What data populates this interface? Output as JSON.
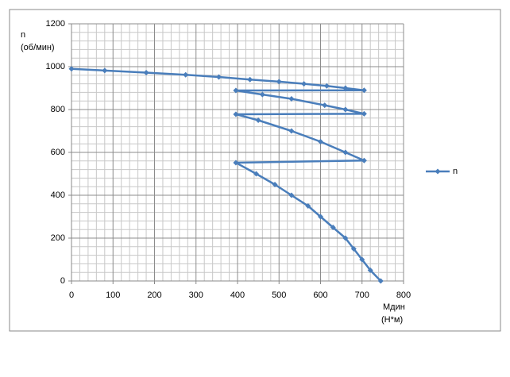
{
  "chart_data": {
    "type": "line",
    "y_label": [
      "n",
      "(об/мин)"
    ],
    "x_label": [
      "Мдин",
      "(Н*м)"
    ],
    "x": [
      0,
      80,
      180,
      275,
      355,
      430,
      500,
      560,
      615,
      660,
      705,
      396,
      460,
      530,
      610,
      660,
      705,
      396,
      450,
      530,
      600,
      660,
      705,
      396,
      445,
      490,
      530,
      570,
      600,
      630,
      660,
      680,
      700,
      720,
      745
    ],
    "series": [
      {
        "name": "n",
        "color": "#4a7ebb",
        "values": [
          990,
          982,
          972,
          962,
          952,
          940,
          930,
          920,
          910,
          900,
          890,
          889,
          870,
          850,
          820,
          800,
          780,
          778,
          750,
          700,
          650,
          600,
          562,
          552,
          500,
          450,
          400,
          350,
          300,
          250,
          200,
          150,
          100,
          50,
          0
        ]
      }
    ],
    "xlim": [
      0,
      800
    ],
    "xticks": [
      0,
      100,
      200,
      300,
      400,
      500,
      600,
      700,
      800
    ],
    "ylim": [
      0,
      1200
    ],
    "yticks": [
      0,
      200,
      400,
      600,
      800,
      1000,
      1200
    ],
    "grid": true,
    "minor_grid": true,
    "legend": "right"
  }
}
